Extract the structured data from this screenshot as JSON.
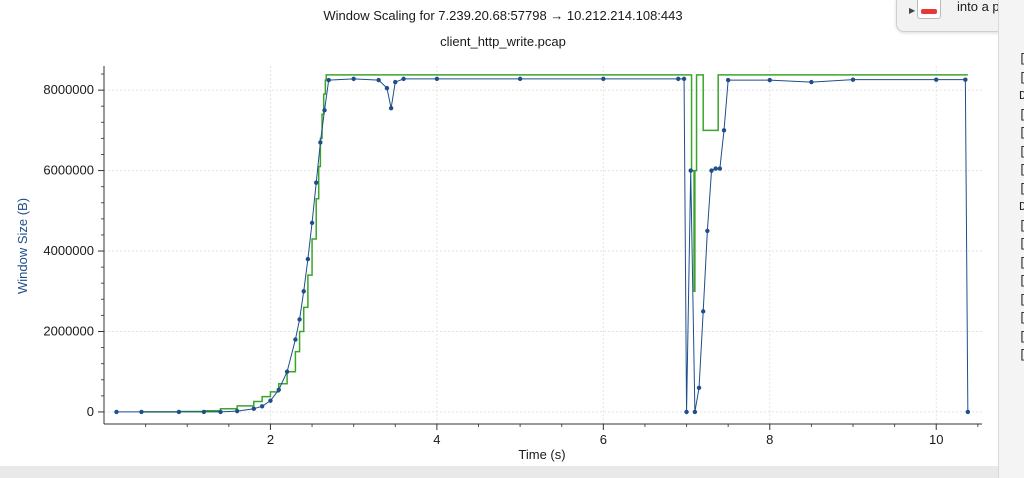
{
  "chart_data": {
    "type": "line",
    "title": "Window Scaling for 7.239.20.68:57798 → 10.212.214.108:443",
    "subtitle": "client_http_write.pcap",
    "xlabel": "Time (s)",
    "ylabel": "Window Size (B)",
    "xlim": [
      0,
      10.55
    ],
    "ylim": [
      -300000,
      8600000
    ],
    "xticks": [
      2,
      4,
      6,
      8,
      10
    ],
    "yticks": [
      0,
      2000000,
      4000000,
      6000000,
      8000000
    ],
    "xtick_labels": [
      "2",
      "4",
      "6",
      "8",
      "10"
    ],
    "ytick_labels": [
      "0",
      "2000000",
      "4000000",
      "6000000",
      "8000000"
    ],
    "grid": true,
    "legend": "none",
    "colors": {
      "step_series": "#3aa52a",
      "point_series": "#1f4e8c"
    },
    "series": [
      {
        "kind": "step",
        "x": [
          0.45,
          0.9,
          1.2,
          1.4,
          1.6,
          1.8,
          1.9,
          2.0,
          2.1,
          2.2,
          2.3,
          2.35,
          2.4,
          2.45,
          2.5,
          2.55,
          2.58,
          2.6,
          2.62,
          2.64,
          2.66,
          2.67,
          7.0,
          7.02,
          7.06,
          7.09,
          7.1,
          7.12,
          7.15,
          7.2,
          7.3,
          7.36,
          7.38,
          7.5,
          8.0,
          9.0,
          10.35,
          10.38
        ],
        "y": [
          0,
          10000,
          30000,
          80000,
          150000,
          260000,
          380000,
          500000,
          700000,
          1000000,
          1500000,
          2000000,
          2600000,
          3400000,
          4300000,
          5300000,
          6100000,
          6800000,
          7400000,
          7900000,
          8250000,
          8380000,
          8380000,
          8380000,
          6000000,
          3000000,
          6000000,
          8380000,
          8380000,
          7000000,
          7000000,
          7000000,
          8380000,
          8380000,
          8380000,
          8380000,
          8380000,
          8380000
        ]
      },
      {
        "kind": "points",
        "x": [
          0.15,
          0.45,
          0.9,
          1.2,
          1.4,
          1.6,
          1.8,
          1.9,
          2.0,
          2.1,
          2.2,
          2.3,
          2.35,
          2.4,
          2.45,
          2.5,
          2.55,
          2.6,
          2.65,
          2.7,
          3.0,
          3.3,
          3.4,
          3.45,
          3.5,
          3.6,
          4.0,
          5.0,
          6.0,
          6.9,
          6.97,
          7.0,
          7.05,
          7.1,
          7.15,
          7.2,
          7.25,
          7.3,
          7.35,
          7.4,
          7.45,
          7.5,
          8.0,
          8.5,
          9.0,
          10.0,
          10.35,
          10.38
        ],
        "y": [
          0,
          0,
          0,
          0,
          0,
          20000,
          80000,
          140000,
          280000,
          550000,
          1000000,
          1800000,
          2300000,
          3000000,
          3800000,
          4700000,
          5700000,
          6700000,
          7500000,
          8250000,
          8280000,
          8250000,
          8050000,
          7550000,
          8200000,
          8280000,
          8280000,
          8280000,
          8280000,
          8280000,
          8280000,
          0,
          6000000,
          0,
          600000,
          2500000,
          4500000,
          6000000,
          6050000,
          6050000,
          7000000,
          8250000,
          8250000,
          8200000,
          8260000,
          8260000,
          8260000,
          0
        ]
      }
    ]
  },
  "popup": {
    "text": "into a powe"
  },
  "side_panel": {
    "items": [
      "[",
      "[",
      "D",
      "[",
      "[",
      "[",
      "[",
      "[",
      "D",
      "[",
      "[",
      "[",
      "[",
      "[",
      "[",
      "[",
      "["
    ]
  }
}
